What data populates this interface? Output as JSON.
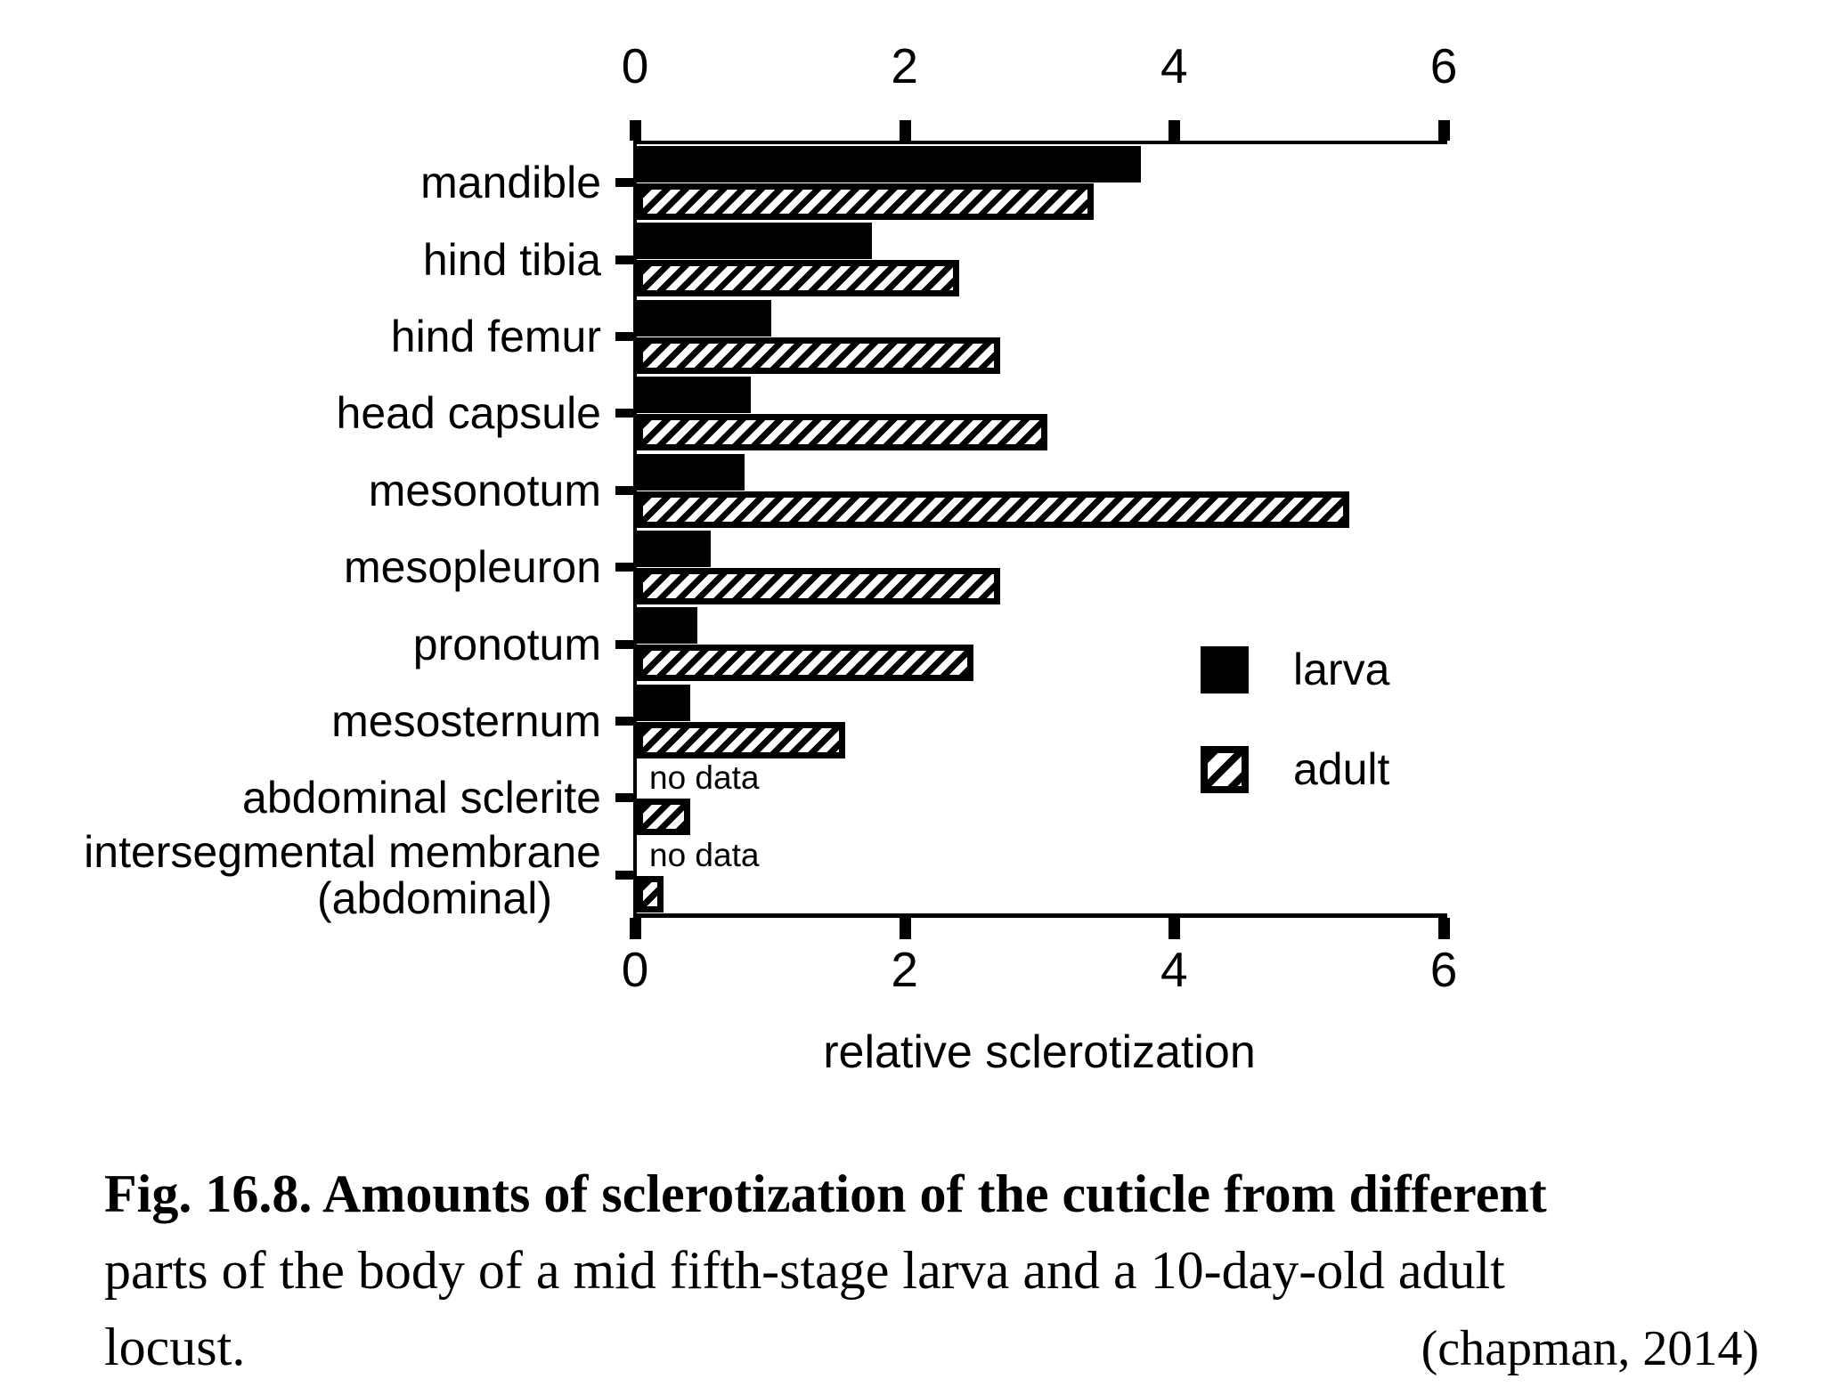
{
  "chart_data": {
    "type": "bar",
    "orientation": "horizontal",
    "title": "",
    "xlabel": "relative sclerotization",
    "ylabel": "",
    "xlim": [
      0,
      6
    ],
    "xticks": [
      0,
      2,
      4,
      6
    ],
    "grid": false,
    "axis_lines": [
      "top",
      "left",
      "bottom"
    ],
    "categories": [
      {
        "label": "mandible"
      },
      {
        "label": "hind tibia"
      },
      {
        "label": "hind femur"
      },
      {
        "label": "head capsule"
      },
      {
        "label": "mesonotum"
      },
      {
        "label": "mesopleuron"
      },
      {
        "label": "pronotum"
      },
      {
        "label": "mesosternum"
      },
      {
        "label": "abdominal sclerite"
      },
      {
        "label": "intersegmental membrane",
        "label2": "(abdominal)"
      }
    ],
    "series": [
      {
        "name": "larva",
        "fill": "solid-black",
        "values": [
          3.75,
          1.75,
          1.0,
          0.85,
          0.8,
          0.55,
          0.45,
          0.4,
          null,
          null
        ]
      },
      {
        "name": "adult",
        "fill": "diagonal-hatch",
        "values": [
          3.4,
          2.4,
          2.7,
          3.05,
          5.3,
          2.7,
          2.5,
          1.55,
          0.4,
          0.2
        ]
      }
    ],
    "no_data_label": "no data",
    "legend": {
      "position": "middle-right",
      "items": [
        "larva",
        "adult"
      ]
    },
    "colors": {
      "foreground": "#000000",
      "background": "#ffffff"
    }
  },
  "caption": {
    "line1_bold": "Fig. 16.8. Amounts of sclerotization of the cuticle from different",
    "line2": "parts of the body of a mid fifth-stage larva and a 10-day-old adult",
    "line3": "locust.",
    "attribution": "(chapman, 2014)"
  }
}
